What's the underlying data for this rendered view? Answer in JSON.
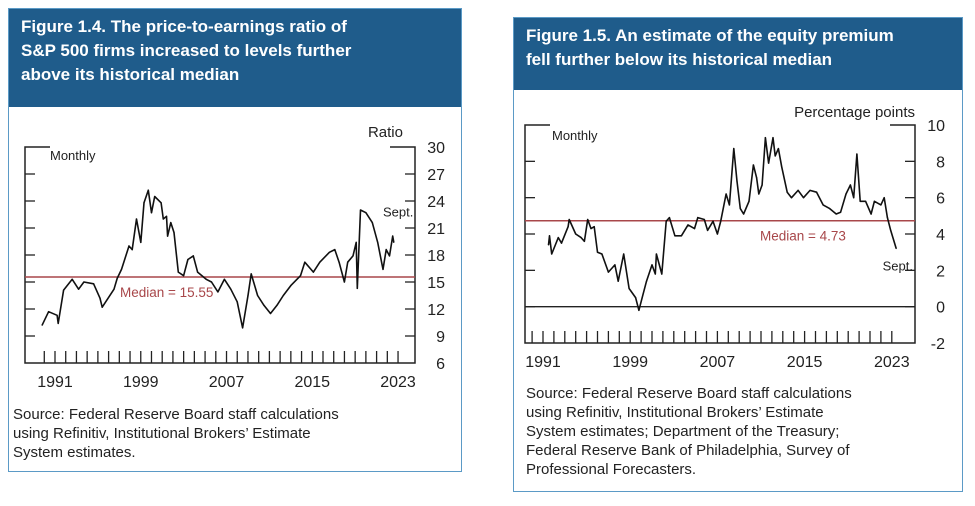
{
  "colors": {
    "header": "#1f5c8b",
    "border": "#5b9ac6",
    "median": "#a8474a",
    "line": "#111111"
  },
  "panels": [
    {
      "title_lines": [
        "Figure 1.4. The price-to-earnings ratio of",
        "S&P 500 firms increased to levels further",
        "above its historical median"
      ],
      "source_lines": [
        "Source: Federal Reserve Board staff calculations",
        "using Refinitiv, Institutional Brokers’ Estimate",
        "System estimates."
      ]
    },
    {
      "title_lines": [
        "Figure 1.5. An estimate of the equity premium",
        "fell further below its historical median"
      ],
      "source_lines": [
        "Source: Federal Reserve Board staff calculations",
        "using Refinitiv, Institutional Brokers’ Estimate",
        "System estimates; Department of the Treasury;",
        "Federal Reserve Bank of Philadelphia, Survey of",
        "Professional Forecasters."
      ]
    }
  ],
  "chart_data": [
    {
      "type": "line",
      "title": "The price-to-earnings ratio of S&P 500 firms",
      "ylabel": "Ratio",
      "frequency_label": "Monthly",
      "end_label": "Sept.",
      "median": 15.55,
      "median_label": "Median = 15.55",
      "ylim": [
        6,
        30
      ],
      "yticks": [
        6,
        9,
        12,
        15,
        18,
        21,
        24,
        27,
        30
      ],
      "xticks": [
        1991,
        1999,
        2007,
        2015,
        2023
      ],
      "x": [
        1989.8,
        1990.4,
        1991.2,
        1991.3,
        1991.8,
        1992.6,
        1993.2,
        1993.7,
        1994.6,
        1995.2,
        1995.4,
        1996.5,
        1996.8,
        1997.2,
        1997.9,
        1998.2,
        1998.6,
        1999.0,
        1999.3,
        1999.7,
        2000.0,
        2000.3,
        2000.9,
        2001.1,
        2001.4,
        2001.5,
        2001.8,
        2002.1,
        2002.5,
        2003.0,
        2003.4,
        2003.9,
        2004.3,
        2005.1,
        2005.6,
        2006.2,
        2006.8,
        2007.4,
        2008.0,
        2008.5,
        2009.0,
        2009.3,
        2009.9,
        2010.5,
        2011.1,
        2011.7,
        2012.3,
        2013.0,
        2013.9,
        2014.3,
        2015.1,
        2015.7,
        2016.6,
        2017.1,
        2017.5,
        2018.0,
        2018.3,
        2018.8,
        2019.1,
        2019.2,
        2019.5,
        2020.0,
        2020.6,
        2021.1,
        2021.6,
        2021.9,
        2022.2,
        2022.5,
        2022.6
      ],
      "values": [
        10.2,
        11.7,
        11.3,
        10.4,
        14.1,
        15.3,
        14.2,
        15.0,
        14.8,
        13.2,
        12.2,
        14.2,
        15.4,
        16.4,
        19.0,
        18.6,
        22.0,
        19.4,
        23.8,
        25.2,
        22.7,
        24.5,
        23.8,
        22.0,
        22.3,
        20.1,
        21.6,
        20.5,
        16.1,
        15.7,
        17.5,
        17.9,
        16.1,
        15.3,
        15.0,
        13.9,
        15.3,
        14.2,
        12.8,
        9.9,
        13.5,
        15.9,
        13.5,
        12.4,
        11.5,
        12.4,
        13.5,
        14.6,
        15.7,
        17.2,
        16.1,
        17.2,
        18.3,
        18.6,
        17.2,
        15.0,
        17.2,
        17.9,
        19.4,
        14.3,
        23.0,
        22.7,
        21.6,
        19.4,
        16.4,
        18.6,
        17.9,
        20.1,
        19.4
      ]
    },
    {
      "type": "line",
      "title": "An estimate of the equity premium",
      "ylabel": "Percentage points",
      "frequency_label": "Monthly",
      "end_label": "Sept.",
      "median": 4.73,
      "median_label": "Median = 4.73",
      "ylim": [
        -2,
        10
      ],
      "yticks": [
        -2,
        0,
        2,
        4,
        6,
        8,
        10
      ],
      "xticks": [
        1991,
        1999,
        2007,
        2015,
        2023
      ],
      "x": [
        1991.5,
        1991.6,
        1991.8,
        1992.4,
        1992.7,
        1993.3,
        1993.4,
        1994.0,
        1994.5,
        1994.8,
        1995.1,
        1995.4,
        1995.7,
        1996.0,
        1996.4,
        1997.0,
        1997.6,
        1997.9,
        1998.4,
        1998.9,
        1999.5,
        1999.8,
        2000.1,
        2000.5,
        2001.0,
        2001.3,
        2001.4,
        2001.9,
        2002.3,
        2002.6,
        2003.1,
        2003.7,
        2004.3,
        2004.9,
        2005.2,
        2005.8,
        2006.1,
        2006.6,
        2007.0,
        2007.3,
        2007.8,
        2008.1,
        2008.5,
        2008.8,
        2009.1,
        2009.4,
        2009.9,
        2010.3,
        2010.6,
        2010.8,
        2011.1,
        2011.4,
        2011.7,
        2012.1,
        2012.3,
        2012.6,
        2012.9,
        2013.4,
        2013.8,
        2014.4,
        2014.9,
        2015.5,
        2016.1,
        2016.7,
        2017.3,
        2017.9,
        2018.3,
        2018.8,
        2019.2,
        2019.5,
        2019.8,
        2020.1,
        2020.6,
        2021.1,
        2021.4,
        2022.0,
        2022.3,
        2022.6,
        2022.9,
        2023.4
      ],
      "values": [
        3.4,
        3.9,
        2.9,
        3.8,
        3.5,
        4.4,
        4.8,
        4.0,
        3.8,
        3.6,
        4.8,
        4.3,
        4.4,
        3.0,
        2.9,
        1.9,
        2.3,
        1.4,
        2.9,
        1.0,
        0.5,
        -0.2,
        0.5,
        1.4,
        2.3,
        1.8,
        2.9,
        1.8,
        4.7,
        4.9,
        3.9,
        3.9,
        4.5,
        4.3,
        4.9,
        4.8,
        4.2,
        4.7,
        4.0,
        4.7,
        6.2,
        5.6,
        8.7,
        6.9,
        5.4,
        5.1,
        5.8,
        7.8,
        7.1,
        6.2,
        6.7,
        9.3,
        7.9,
        9.3,
        8.3,
        8.7,
        7.7,
        6.3,
        6.0,
        6.4,
        6.0,
        6.4,
        6.3,
        5.6,
        5.4,
        5.1,
        5.2,
        6.2,
        6.7,
        6.0,
        8.4,
        5.8,
        5.8,
        5.1,
        5.8,
        5.6,
        6.0,
        4.9,
        4.2,
        3.2
      ]
    }
  ]
}
